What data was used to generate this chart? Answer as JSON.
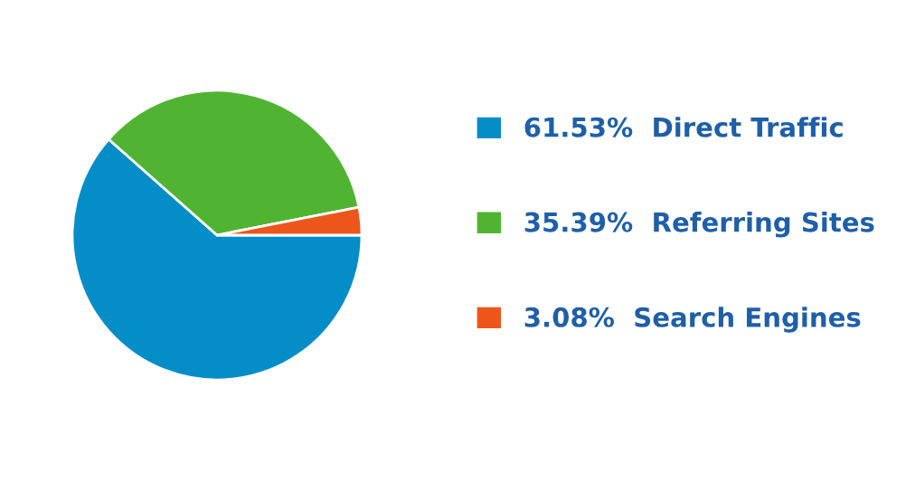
{
  "chart_data": {
    "type": "pie",
    "categories": [
      "Direct Traffic",
      "Referring Sites",
      "Search Engines"
    ],
    "values": [
      61.53,
      35.39,
      3.08
    ],
    "colors": [
      "#058dc7",
      "#50b432",
      "#ed561b"
    ],
    "value_labels": [
      "61.53%",
      "35.39%",
      "3.08%"
    ],
    "legend": "right"
  }
}
